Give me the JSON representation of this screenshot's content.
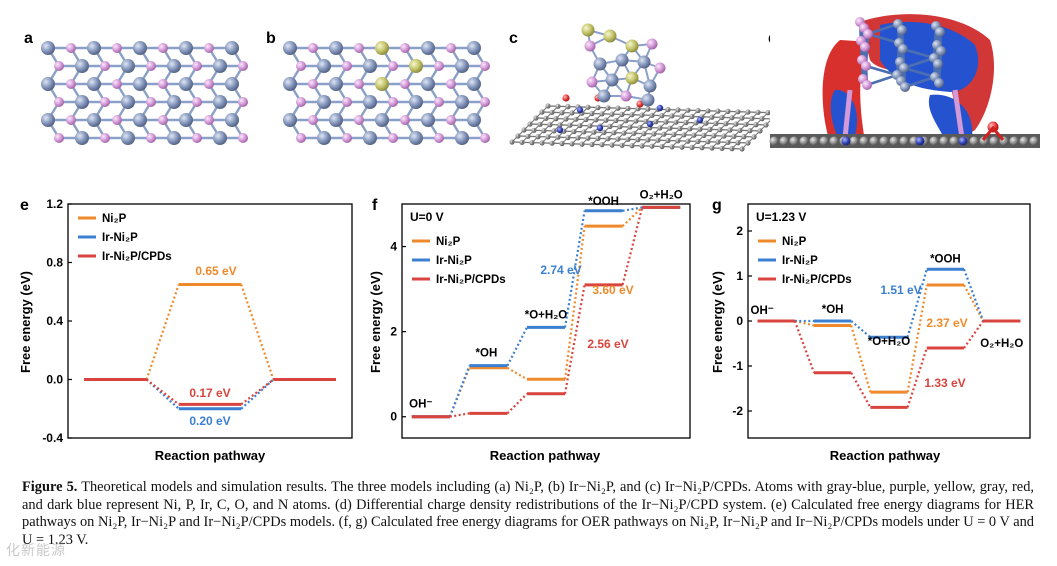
{
  "panels": {
    "a": {
      "letter": "a"
    },
    "b": {
      "letter": "b"
    },
    "c": {
      "letter": "c"
    },
    "d": {
      "letter": "d"
    }
  },
  "colors": {
    "ni2p": "#ef8a2c",
    "ir_ni2p": "#3b7fd0",
    "ir_ni2p_cpds": "#d9443e",
    "ni_atom": "#7f93bb",
    "p_atom": "#d49ad8",
    "ir_atom": "#c8c86a",
    "c_atom": "#8a8a8a",
    "o_atom": "#e03030",
    "n_atom": "#2f3fb0",
    "charge_accum": "#e03030",
    "charge_deplete": "#2a5fd9"
  },
  "icons": [
    "ni2p-slab-icon",
    "ir-ni2p-slab-icon",
    "cluster-on-graphene-icon",
    "charge-density-icon"
  ],
  "caption": {
    "label": "Figure 5.",
    "text": "Theoretical models and simulation results. The three models including (a) Ni₂P, (b) Ir−Ni₂P, and (c) Ir−Ni₂P/CPDs. Atoms with gray-blue, purple, yellow, gray, red, and dark blue represent Ni, P, Ir, C, O, and N atoms. (d) Differential charge density redistributions of the Ir−Ni₂P/CPD system. (e) Calculated free energy diagrams for HER pathways on Ni₂P, Ir−Ni₂P and Ir−Ni₂P/CPDs models. (f, g) Calculated free energy diagrams for OER pathways on Ni₂P, Ir−Ni₂P and Ir−Ni₂P/CPDs models under U = 0 V and U = 1.23 V."
  },
  "watermark": "化新能源",
  "chart_data": [
    {
      "panel": "e",
      "type": "line",
      "ylabel": "Free energy (eV)",
      "xlabel": "Reaction pathway",
      "ylim": [
        -0.4,
        1.2
      ],
      "yticks": [
        "-0.4",
        "0.0",
        "0.4",
        "0.8",
        "1.2"
      ],
      "legend": [
        "Ni₂P",
        "Ir-Ni₂P",
        "Ir-Ni₂P/CPDs"
      ],
      "legend_position": "top-left",
      "series": [
        {
          "name": "Ni₂P",
          "values": [
            0,
            0.65,
            0
          ]
        },
        {
          "name": "Ir-Ni₂P",
          "values": [
            0,
            -0.2,
            0
          ]
        },
        {
          "name": "Ir-Ni₂P/CPDs",
          "values": [
            0,
            -0.17,
            0
          ]
        }
      ],
      "annotations": [
        {
          "text": "0.65 eV",
          "series": "Ni₂P"
        },
        {
          "text": "0.17 eV",
          "series": "Ir-Ni₂P/CPDs"
        },
        {
          "text": "0.20 eV",
          "series": "Ir-Ni₂P"
        }
      ]
    },
    {
      "panel": "f",
      "type": "line",
      "ylabel": "Free energy (eV)",
      "xlabel": "Reaction pathway",
      "condition": "U=0 V",
      "ylim": [
        -0.5,
        5.0
      ],
      "yticks": [
        "0",
        "2",
        "4"
      ],
      "legend": [
        "Ni₂P",
        "Ir-Ni₂P",
        "Ir-Ni₂P/CPDs"
      ],
      "legend_position": "top-left",
      "steps": [
        "OH⁻",
        "*OH",
        "*O+H₂O",
        "*OOH",
        "O₂+H₂O"
      ],
      "series": [
        {
          "name": "Ni₂P",
          "values": [
            0,
            1.15,
            0.88,
            4.48,
            4.92
          ]
        },
        {
          "name": "Ir-Ni₂P",
          "values": [
            0,
            1.2,
            2.1,
            4.84,
            4.92
          ]
        },
        {
          "name": "Ir-Ni₂P/CPDs",
          "values": [
            0,
            0.08,
            0.54,
            3.1,
            4.92
          ]
        }
      ],
      "annotations": [
        {
          "text": "2.74 eV",
          "series": "Ir-Ni₂P"
        },
        {
          "text": "3.60 eV",
          "series": "Ni₂P"
        },
        {
          "text": "2.56 eV",
          "series": "Ir-Ni₂P/CPDs"
        }
      ]
    },
    {
      "panel": "g",
      "type": "line",
      "ylabel": "Free energy (eV)",
      "xlabel": "Reaction pathway",
      "condition": "U=1.23 V",
      "ylim": [
        -2.6,
        2.6
      ],
      "yticks": [
        "-2",
        "-1",
        "0",
        "1",
        "2"
      ],
      "legend": [
        "Ni₂P",
        "Ir-Ni₂P",
        "Ir-Ni₂P/CPDs"
      ],
      "legend_position": "top-left",
      "steps": [
        "OH⁻",
        "*OH",
        "*O+H₂O",
        "*OOH",
        "O₂+H₂O"
      ],
      "series": [
        {
          "name": "Ni₂P",
          "values": [
            0,
            -0.1,
            -1.58,
            0.8,
            0
          ]
        },
        {
          "name": "Ir-Ni₂P",
          "values": [
            0,
            0,
            -0.36,
            1.15,
            0
          ]
        },
        {
          "name": "Ir-Ni₂P/CPDs",
          "values": [
            0,
            -1.15,
            -1.92,
            -0.6,
            0
          ]
        }
      ],
      "annotations": [
        {
          "text": "1.51 eV",
          "series": "Ir-Ni₂P"
        },
        {
          "text": "2.37 eV",
          "series": "Ni₂P"
        },
        {
          "text": "1.33 eV",
          "series": "Ir-Ni₂P/CPDs"
        }
      ]
    }
  ]
}
